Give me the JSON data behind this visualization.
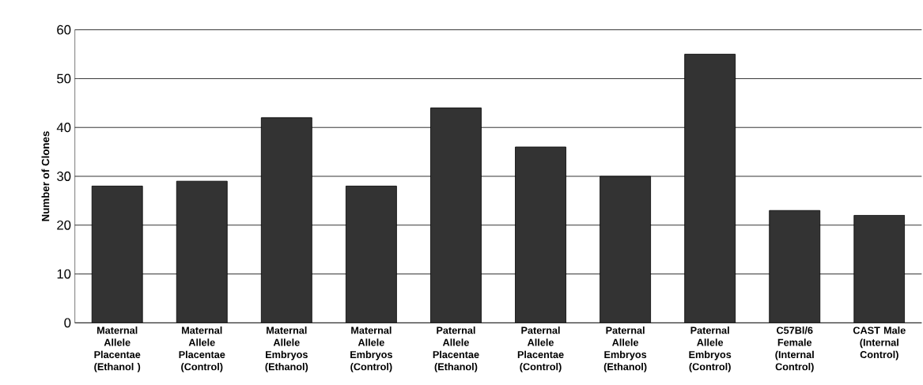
{
  "chart_data": {
    "type": "bar",
    "ylabel": "Number of Clones",
    "categories": [
      "Maternal Allele Placentae (Ethanol )",
      "Maternal Allele Placentae (Control)",
      "Maternal Allele Embryos (Ethanol)",
      "Maternal Allele Embryos (Control)",
      "Paternal Allele Placentae (Ethanol)",
      "Paternal Allele Placentae (Control)",
      "Paternal Allele Embryos (Ethanol)",
      "Paternal Allele Embryos (Control)",
      "C57Bl/6 Female (Internal Control)",
      "CAST Male (Internal Control)"
    ],
    "values": [
      28,
      29,
      42,
      28,
      44,
      36,
      30,
      55,
      23,
      22
    ],
    "color": "#333333",
    "ylim": [
      0,
      60
    ],
    "yticks": [
      0,
      10,
      20,
      30,
      40,
      50,
      60
    ],
    "grid": "y"
  }
}
